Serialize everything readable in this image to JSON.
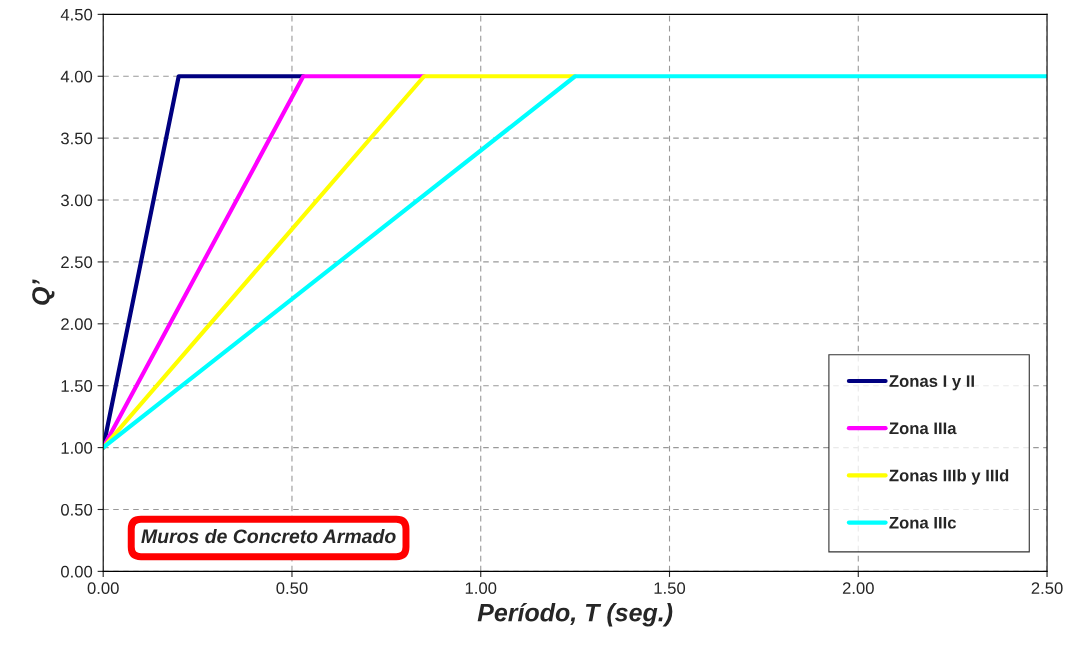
{
  "chart_data": {
    "type": "line",
    "xlabel": "Período, T (seg.)",
    "ylabel": "Q’",
    "series": [
      {
        "name": "Zonas I y II",
        "color": "#000080",
        "x": [
          0,
          0.2,
          0.53
        ],
        "values": [
          1,
          4,
          4
        ]
      },
      {
        "name": "Zona IIIa",
        "color": "#ff00ff",
        "x": [
          0,
          0.53,
          0.85
        ],
        "values": [
          1,
          4,
          4
        ]
      },
      {
        "name": "Zonas IIIb y IIId",
        "color": "#ffff00",
        "x": [
          0,
          0.85,
          1.25
        ],
        "values": [
          1,
          4,
          4
        ]
      },
      {
        "name": "Zona IIIc",
        "color": "#00ffff",
        "x": [
          0,
          1.25,
          2.5
        ],
        "values": [
          1,
          4,
          4
        ]
      }
    ],
    "xlim": [
      0,
      2.5
    ],
    "xticks": [
      {
        "value": 0,
        "label": "0.00"
      },
      {
        "value": 0.5,
        "label": "0.50"
      },
      {
        "value": 1,
        "label": "1.00"
      },
      {
        "value": 1.5,
        "label": "1.50"
      },
      {
        "value": 2,
        "label": "2.00"
      },
      {
        "value": 2.5,
        "label": "2.50"
      }
    ],
    "ylim": [
      0,
      4.5
    ],
    "yticks": [
      {
        "value": 0,
        "label": "0.00"
      },
      {
        "value": 0.5,
        "label": "0.50"
      },
      {
        "value": 1,
        "label": "1.00"
      },
      {
        "value": 1.5,
        "label": "1.50"
      },
      {
        "value": 2,
        "label": "2.00"
      },
      {
        "value": 2.5,
        "label": "2.50"
      },
      {
        "value": 3,
        "label": "3.00"
      },
      {
        "value": 3.5,
        "label": "3.50"
      },
      {
        "value": 4,
        "label": "4.00"
      },
      {
        "value": 4.5,
        "label": "4.50"
      }
    ],
    "grid": true,
    "legend": "bottom right",
    "marker": "none",
    "line_style": "solid",
    "annotations": [
      "Muros de Concreto Armado"
    ]
  }
}
